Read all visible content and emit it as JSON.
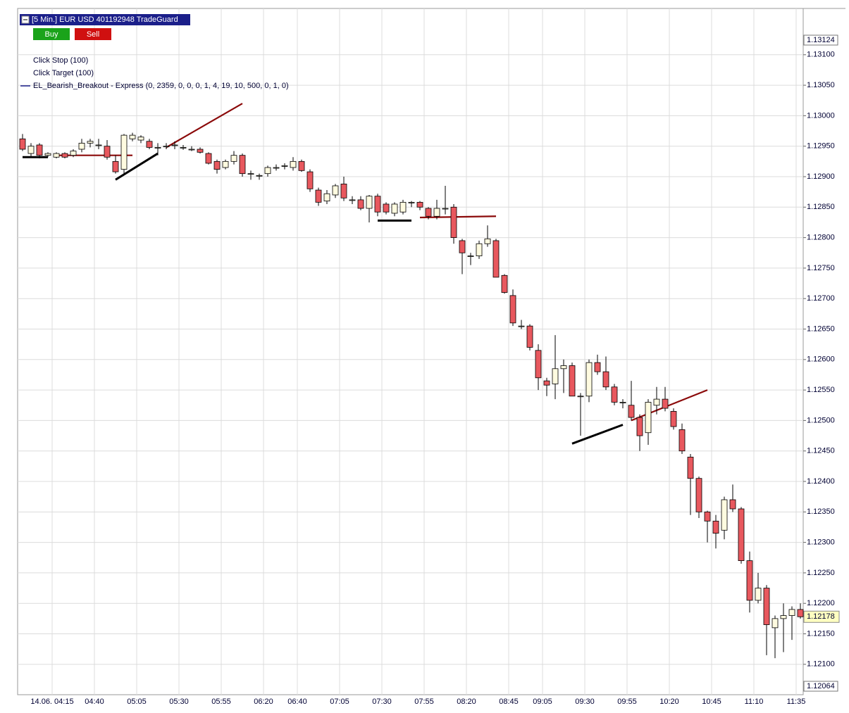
{
  "window": {
    "title": "[5 Min.] EUR USD  401192948 TradeGuard",
    "buttons": [
      "Buy",
      "Sell"
    ]
  },
  "chart_data": {
    "type": "candlestick",
    "annotations": [
      "Click Stop  (100)",
      "Click Target  (100)",
      "EL_Bearish_Breakout - Express  (0, 2359, 0, 0, 0, 1, 4, 19, 10, 500, 0, 1, 0)"
    ],
    "categories": [
      null,
      null,
      null,
      "14.06. 04:15",
      null,
      null,
      null,
      null,
      "04:40",
      null,
      null,
      null,
      null,
      "05:05",
      null,
      null,
      null,
      null,
      "05:30",
      null,
      null,
      null,
      null,
      "05:55",
      null,
      null,
      null,
      null,
      "06:20",
      null,
      null,
      null,
      "06:40",
      null,
      null,
      null,
      null,
      "07:05",
      null,
      null,
      null,
      null,
      "07:30",
      null,
      null,
      null,
      null,
      "07:55",
      null,
      null,
      null,
      null,
      "08:20",
      null,
      null,
      null,
      null,
      "08:45",
      null,
      null,
      null,
      "09:05",
      null,
      null,
      null,
      null,
      "09:30",
      null,
      null,
      null,
      null,
      "09:55",
      null,
      null,
      null,
      null,
      "10:20",
      null,
      null,
      null,
      null,
      "10:45",
      null,
      null,
      null,
      null,
      "11:10",
      null,
      null,
      null,
      null,
      "11:35",
      null
    ],
    "open": [
      1.12962,
      1.12938,
      1.12952,
      1.12935,
      1.12932,
      1.12938,
      1.12935,
      1.12945,
      1.12955,
      1.12952,
      1.1295,
      1.12925,
      1.12912,
      1.12962,
      1.1296,
      1.12958,
      1.12948,
      1.1295,
      1.12952,
      1.12948,
      1.12945,
      1.12945,
      1.12938,
      1.12925,
      1.12915,
      1.12925,
      1.12935,
      1.12905,
      1.12902,
      1.12905,
      1.12915,
      1.12918,
      1.12915,
      1.12925,
      1.12908,
      1.12878,
      1.1286,
      1.1287,
      1.12888,
      1.12862,
      1.12862,
      1.12848,
      1.12868,
      1.12855,
      1.1284,
      1.12842,
      1.12858,
      1.12858,
      1.12848,
      1.12835,
      1.12848,
      1.1285,
      1.12795,
      1.1277,
      1.1277,
      1.1279,
      1.12795,
      1.12738,
      1.12705,
      1.12655,
      1.12655,
      1.12615,
      1.12565,
      1.1256,
      1.12585,
      1.1259,
      1.1254,
      1.1254,
      1.12595,
      1.1258,
      1.12555,
      1.1253,
      1.12525,
      1.12505,
      1.1248,
      1.12525,
      1.12535,
      1.12515,
      1.12485,
      1.1244,
      1.12405,
      1.1235,
      1.12335,
      1.1232,
      1.1237,
      1.12355,
      1.1227,
      1.12205,
      1.12225,
      1.1216,
      1.12175,
      1.1218,
      1.1219
    ],
    "high": [
      1.1297,
      1.12955,
      1.12955,
      1.1294,
      1.1294,
      1.1294,
      1.12945,
      1.12962,
      1.12962,
      1.12962,
      1.1296,
      1.12935,
      1.1297,
      1.12972,
      1.12968,
      1.12962,
      1.12955,
      1.12955,
      1.12958,
      1.12952,
      1.1295,
      1.12948,
      1.1294,
      1.12928,
      1.12928,
      1.12942,
      1.12938,
      1.1291,
      1.12905,
      1.12918,
      1.1292,
      1.12922,
      1.12932,
      1.12928,
      1.12912,
      1.12882,
      1.12878,
      1.12888,
      1.129,
      1.12868,
      1.12868,
      1.1287,
      1.12872,
      1.12858,
      1.12858,
      1.12862,
      1.1286,
      1.1286,
      1.1285,
      1.12862,
      1.12885,
      1.12855,
      1.12798,
      1.12775,
      1.12795,
      1.1282,
      1.12798,
      1.1274,
      1.12715,
      1.12665,
      1.12658,
      1.12625,
      1.1257,
      1.1264,
      1.126,
      1.12595,
      1.12545,
      1.126,
      1.12608,
      1.12605,
      1.1256,
      1.12535,
      1.12565,
      1.1251,
      1.12535,
      1.12555,
      1.12555,
      1.1252,
      1.12495,
      1.12445,
      1.12408,
      1.12352,
      1.12345,
      1.12375,
      1.12395,
      1.12358,
      1.12285,
      1.1225,
      1.1223,
      1.1218,
      1.122,
      1.12195,
      1.122
    ],
    "low": [
      1.12942,
      1.12932,
      1.1293,
      1.12932,
      1.1293,
      1.1293,
      1.12932,
      1.1294,
      1.12948,
      1.12945,
      1.12928,
      1.12905,
      1.12905,
      1.12958,
      1.12955,
      1.12945,
      1.12935,
      1.12945,
      1.12945,
      1.12944,
      1.12942,
      1.12938,
      1.1292,
      1.12905,
      1.12912,
      1.1292,
      1.129,
      1.12895,
      1.12895,
      1.129,
      1.1291,
      1.12912,
      1.1291,
      1.12908,
      1.12875,
      1.12852,
      1.12855,
      1.12865,
      1.1286,
      1.12855,
      1.12845,
      1.12825,
      1.12835,
      1.12838,
      1.12835,
      1.12838,
      1.1285,
      1.12845,
      1.1283,
      1.1283,
      1.12838,
      1.1279,
      1.1274,
      1.12755,
      1.12765,
      1.12785,
      1.12735,
      1.12708,
      1.12655,
      1.1265,
      1.12615,
      1.1255,
      1.1254,
      1.12535,
      1.12545,
      1.1254,
      1.12475,
      1.1253,
      1.12575,
      1.1255,
      1.12525,
      1.1252,
      1.125,
      1.1245,
      1.1246,
      1.1251,
      1.12515,
      1.12485,
      1.12445,
      1.12345,
      1.1234,
      1.123,
      1.1229,
      1.12305,
      1.1235,
      1.12265,
      1.12185,
      1.122,
      1.12115,
      1.1211,
      1.1212,
      1.1214,
      1.12175
    ],
    "close": [
      1.12945,
      1.1295,
      1.12935,
      1.12938,
      1.12938,
      1.12932,
      1.12942,
      1.12955,
      1.12958,
      1.12952,
      1.12932,
      1.12908,
      1.12968,
      1.12968,
      1.12965,
      1.12948,
      1.12948,
      1.1295,
      1.12952,
      1.12948,
      1.12945,
      1.1294,
      1.12922,
      1.12912,
      1.12925,
      1.12935,
      1.12905,
      1.12905,
      1.12902,
      1.12915,
      1.12915,
      1.12918,
      1.12925,
      1.1291,
      1.1288,
      1.12858,
      1.12872,
      1.12885,
      1.12865,
      1.12862,
      1.12848,
      1.12868,
      1.12842,
      1.12842,
      1.12855,
      1.12858,
      1.12858,
      1.1285,
      1.12835,
      1.12848,
      1.12848,
      1.128,
      1.12775,
      1.1277,
      1.1279,
      1.12798,
      1.12735,
      1.1271,
      1.1266,
      1.12655,
      1.1262,
      1.1257,
      1.12558,
      1.12585,
      1.1259,
      1.1254,
      1.1254,
      1.12595,
      1.1258,
      1.12555,
      1.1253,
      1.1253,
      1.12505,
      1.12475,
      1.1253,
      1.12535,
      1.1252,
      1.1249,
      1.1245,
      1.12405,
      1.1235,
      1.12335,
      1.12315,
      1.1237,
      1.12355,
      1.1227,
      1.12205,
      1.12225,
      1.12165,
      1.12175,
      1.1218,
      1.1219,
      1.12178
    ],
    "up_color": "#fffbe0",
    "down_color": "#e8585e",
    "lines": [
      {
        "color": "#8b0a0a",
        "x": [
          "04:20",
          "05:05"
        ],
        "values": [
          1.12935,
          1.12935
        ]
      },
      {
        "color": "#8b0a0a",
        "x": [
          "05:25",
          "06:10"
        ],
        "values": [
          1.12948,
          1.1302
        ]
      },
      {
        "color": "#8b0a0a",
        "x": [
          "07:55",
          "08:40"
        ],
        "values": [
          1.12833,
          1.12835
        ]
      },
      {
        "color": "#8b0a0a",
        "x": [
          "10:00",
          "10:45"
        ],
        "values": [
          1.125,
          1.1255
        ]
      },
      {
        "color": "#000000",
        "x": [
          "04:00",
          "04:15"
        ],
        "values": [
          1.12932,
          1.12932
        ]
      },
      {
        "color": "#000000",
        "x": [
          "04:55",
          "05:20"
        ],
        "values": [
          1.12895,
          1.12938
        ]
      },
      {
        "color": "#000000",
        "x": [
          "07:30",
          "07:50"
        ],
        "values": [
          1.12828,
          1.12828
        ]
      },
      {
        "color": "#000000",
        "x": [
          "09:25",
          "09:55"
        ],
        "values": [
          1.12462,
          1.12493
        ]
      }
    ],
    "ylim": [
      1.12064,
      1.13124
    ],
    "yticks": [
      {
        "value": 1.121,
        "label": "1.12100"
      },
      {
        "value": 1.1215,
        "label": "1.12150"
      },
      {
        "value": 1.122,
        "label": "1.12200"
      },
      {
        "value": 1.1225,
        "label": "1.12250"
      },
      {
        "value": 1.123,
        "label": "1.12300"
      },
      {
        "value": 1.1235,
        "label": "1.12350"
      },
      {
        "value": 1.124,
        "label": "1.12400"
      },
      {
        "value": 1.1245,
        "label": "1.12450"
      },
      {
        "value": 1.125,
        "label": "1.12500"
      },
      {
        "value": 1.1255,
        "label": "1.12550"
      },
      {
        "value": 1.126,
        "label": "1.12600"
      },
      {
        "value": 1.1265,
        "label": "1.12650"
      },
      {
        "value": 1.127,
        "label": "1.12700"
      },
      {
        "value": 1.1275,
        "label": "1.12750"
      },
      {
        "value": 1.128,
        "label": "1.12800"
      },
      {
        "value": 1.1285,
        "label": "1.12850"
      },
      {
        "value": 1.129,
        "label": "1.12900"
      },
      {
        "value": 1.1295,
        "label": "1.12950"
      },
      {
        "value": 1.13,
        "label": "1.13000"
      },
      {
        "value": 1.1305,
        "label": "1.13050"
      },
      {
        "value": 1.131,
        "label": "1.13100"
      }
    ],
    "last_price": 1.12178,
    "grid": true
  }
}
